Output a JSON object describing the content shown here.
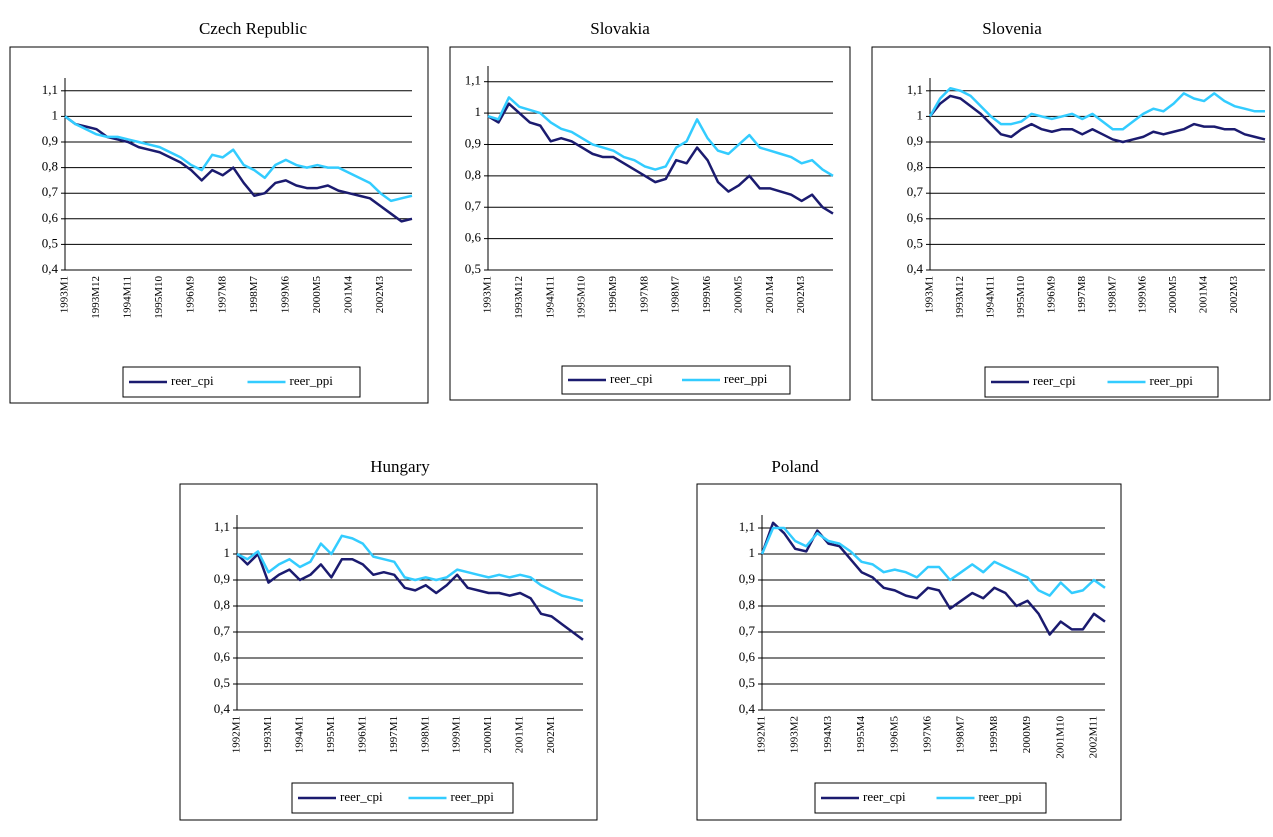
{
  "chart_data": [
    {
      "type": "line",
      "title": "Czech Republic",
      "categories": [
        "1993M1",
        null,
        null,
        "1993M12",
        null,
        null,
        "1994M11",
        null,
        null,
        "1995M10",
        null,
        null,
        "1996M9",
        null,
        null,
        "1997M8",
        null,
        null,
        "1998M7",
        null,
        null,
        "1999M6",
        null,
        null,
        "2000M5",
        null,
        null,
        "2001M4",
        null,
        null,
        "2002M3",
        null,
        null,
        null
      ],
      "series": [
        {
          "name": "reer_cpi",
          "color": "#1b1b6f",
          "values": [
            1.0,
            0.97,
            0.96,
            0.95,
            0.92,
            0.91,
            0.9,
            0.88,
            0.87,
            0.86,
            0.84,
            0.82,
            0.79,
            0.75,
            0.79,
            0.77,
            0.8,
            0.74,
            0.69,
            0.7,
            0.74,
            0.75,
            0.73,
            0.72,
            0.72,
            0.73,
            0.71,
            0.7,
            0.69,
            0.68,
            0.65,
            0.62,
            0.59,
            0.6
          ]
        },
        {
          "name": "reer_ppi",
          "color": "#33ccff",
          "values": [
            1.0,
            0.97,
            0.95,
            0.93,
            0.92,
            0.92,
            0.91,
            0.9,
            0.89,
            0.88,
            0.86,
            0.84,
            0.81,
            0.79,
            0.85,
            0.84,
            0.87,
            0.81,
            0.79,
            0.76,
            0.81,
            0.83,
            0.81,
            0.8,
            0.81,
            0.8,
            0.8,
            0.78,
            0.76,
            0.74,
            0.7,
            0.67,
            0.68,
            0.69
          ]
        }
      ],
      "ylim": [
        0.4,
        1.15
      ],
      "yticks": [
        {
          "value": 0.4,
          "label": "0,4"
        },
        {
          "value": 0.5,
          "label": "0,5"
        },
        {
          "value": 0.6,
          "label": "0,6"
        },
        {
          "value": 0.7,
          "label": "0,7"
        },
        {
          "value": 0.8,
          "label": "0,8"
        },
        {
          "value": 0.9,
          "label": "0,9"
        },
        1,
        {
          "value": 1.1,
          "label": "1,1"
        }
      ],
      "grid": true,
      "legend": "bottom"
    },
    {
      "type": "line",
      "title": "Slovakia",
      "categories": [
        "1993M1",
        null,
        null,
        "1993M12",
        null,
        null,
        "1994M11",
        null,
        null,
        "1995M10",
        null,
        null,
        "1996M9",
        null,
        null,
        "1997M8",
        null,
        null,
        "1998M7",
        null,
        null,
        "1999M6",
        null,
        null,
        "2000M5",
        null,
        null,
        "2001M4",
        null,
        null,
        "2002M3",
        null,
        null,
        null
      ],
      "series": [
        {
          "name": "reer_cpi",
          "color": "#1b1b6f",
          "values": [
            0.99,
            0.97,
            1.03,
            1.0,
            0.97,
            0.96,
            0.91,
            0.92,
            0.91,
            0.89,
            0.87,
            0.86,
            0.86,
            0.84,
            0.82,
            0.8,
            0.78,
            0.79,
            0.85,
            0.84,
            0.89,
            0.85,
            0.78,
            0.75,
            0.77,
            0.8,
            0.76,
            0.76,
            0.75,
            0.74,
            0.72,
            0.74,
            0.7,
            0.68
          ]
        },
        {
          "name": "reer_ppi",
          "color": "#33ccff",
          "values": [
            0.99,
            0.98,
            1.05,
            1.02,
            1.01,
            1.0,
            0.97,
            0.95,
            0.94,
            0.92,
            0.9,
            0.89,
            0.88,
            0.86,
            0.85,
            0.83,
            0.82,
            0.83,
            0.89,
            0.91,
            0.98,
            0.92,
            0.88,
            0.87,
            0.9,
            0.93,
            0.89,
            0.88,
            0.87,
            0.86,
            0.84,
            0.85,
            0.82,
            0.8
          ]
        }
      ],
      "ylim": [
        0.5,
        1.15
      ],
      "yticks": [
        {
          "value": 0.5,
          "label": "0,5"
        },
        {
          "value": 0.6,
          "label": "0,6"
        },
        {
          "value": 0.7,
          "label": "0,7"
        },
        {
          "value": 0.8,
          "label": "0,8"
        },
        {
          "value": 0.9,
          "label": "0,9"
        },
        1,
        {
          "value": 1.1,
          "label": "1,1"
        }
      ],
      "grid": true,
      "legend": "bottom"
    },
    {
      "type": "line",
      "title": "Slovenia",
      "categories": [
        "1993M1",
        null,
        null,
        "1993M12",
        null,
        null,
        "1994M11",
        null,
        null,
        "1995M10",
        null,
        null,
        "1996M9",
        null,
        null,
        "1997M8",
        null,
        null,
        "1998M7",
        null,
        null,
        "1999M6",
        null,
        null,
        "2000M5",
        null,
        null,
        "2001M4",
        null,
        null,
        "2002M3",
        null,
        null,
        null
      ],
      "series": [
        {
          "name": "reer_cpi",
          "color": "#1b1b6f",
          "values": [
            1.0,
            1.05,
            1.08,
            1.07,
            1.04,
            1.01,
            0.97,
            0.93,
            0.92,
            0.95,
            0.97,
            0.95,
            0.94,
            0.95,
            0.95,
            0.93,
            0.95,
            0.93,
            0.91,
            0.9,
            0.91,
            0.92,
            0.94,
            0.93,
            0.94,
            0.95,
            0.97,
            0.96,
            0.96,
            0.95,
            0.95,
            0.93,
            0.92,
            0.91
          ]
        },
        {
          "name": "reer_ppi",
          "color": "#33ccff",
          "values": [
            1.0,
            1.07,
            1.11,
            1.1,
            1.08,
            1.04,
            1.0,
            0.97,
            0.97,
            0.98,
            1.01,
            1.0,
            0.99,
            1.0,
            1.01,
            0.99,
            1.01,
            0.98,
            0.95,
            0.95,
            0.98,
            1.01,
            1.03,
            1.02,
            1.05,
            1.09,
            1.07,
            1.06,
            1.09,
            1.06,
            1.04,
            1.03,
            1.02,
            1.02
          ]
        }
      ],
      "ylim": [
        0.4,
        1.15
      ],
      "yticks": [
        {
          "value": 0.4,
          "label": "0,4"
        },
        {
          "value": 0.5,
          "label": "0,5"
        },
        {
          "value": 0.6,
          "label": "0,6"
        },
        {
          "value": 0.7,
          "label": "0,7"
        },
        {
          "value": 0.8,
          "label": "0,8"
        },
        {
          "value": 0.9,
          "label": "0,9"
        },
        1,
        {
          "value": 1.1,
          "label": "1,1"
        }
      ],
      "grid": true,
      "legend": "bottom"
    },
    {
      "type": "line",
      "title": "Hungary",
      "categories": [
        "1992M1",
        null,
        null,
        "1993M1",
        null,
        null,
        "1994M1",
        null,
        null,
        "1995M1",
        null,
        null,
        "1996M1",
        null,
        null,
        "1997M1",
        null,
        null,
        "1998M1",
        null,
        null,
        "1999M1",
        null,
        null,
        "2000M1",
        null,
        null,
        "2001M1",
        null,
        null,
        "2002M1",
        null,
        null,
        null
      ],
      "series": [
        {
          "name": "reer_cpi",
          "color": "#1b1b6f",
          "values": [
            1.0,
            0.96,
            1.0,
            0.89,
            0.92,
            0.94,
            0.9,
            0.92,
            0.96,
            0.91,
            0.98,
            0.98,
            0.96,
            0.92,
            0.93,
            0.92,
            0.87,
            0.86,
            0.88,
            0.85,
            0.88,
            0.92,
            0.87,
            0.86,
            0.85,
            0.85,
            0.84,
            0.85,
            0.83,
            0.77,
            0.76,
            0.73,
            0.7,
            0.67
          ]
        },
        {
          "name": "reer_ppi",
          "color": "#33ccff",
          "values": [
            1.0,
            0.98,
            1.01,
            0.93,
            0.96,
            0.98,
            0.95,
            0.97,
            1.04,
            1.0,
            1.07,
            1.06,
            1.04,
            0.99,
            0.98,
            0.97,
            0.91,
            0.9,
            0.91,
            0.9,
            0.91,
            0.94,
            0.93,
            0.92,
            0.91,
            0.92,
            0.91,
            0.92,
            0.91,
            0.88,
            0.86,
            0.84,
            0.83,
            0.82
          ]
        }
      ],
      "ylim": [
        0.4,
        1.15
      ],
      "yticks": [
        {
          "value": 0.4,
          "label": "0,4"
        },
        {
          "value": 0.5,
          "label": "0,5"
        },
        {
          "value": 0.6,
          "label": "0,6"
        },
        {
          "value": 0.7,
          "label": "0,7"
        },
        {
          "value": 0.8,
          "label": "0,8"
        },
        {
          "value": 0.9,
          "label": "0,9"
        },
        1,
        {
          "value": 1.1,
          "label": "1,1"
        }
      ],
      "grid": true,
      "legend": "bottom"
    },
    {
      "type": "line",
      "title": "Poland",
      "categories": [
        "1992M1",
        null,
        null,
        "1993M2",
        null,
        null,
        "1994M3",
        null,
        null,
        "1995M4",
        null,
        null,
        "1996M5",
        null,
        null,
        "1997M6",
        null,
        null,
        "1998M7",
        null,
        null,
        "1999M8",
        null,
        null,
        "2000M9",
        null,
        null,
        "2001M10",
        null,
        null,
        "2002M11",
        null
      ],
      "series": [
        {
          "name": "reer_cpi",
          "color": "#1b1b6f",
          "values": [
            1.0,
            1.12,
            1.08,
            1.02,
            1.01,
            1.09,
            1.04,
            1.03,
            0.98,
            0.93,
            0.91,
            0.87,
            0.86,
            0.84,
            0.83,
            0.87,
            0.86,
            0.79,
            0.82,
            0.85,
            0.83,
            0.87,
            0.85,
            0.8,
            0.82,
            0.77,
            0.69,
            0.74,
            0.71,
            0.71,
            0.77,
            0.74
          ]
        },
        {
          "name": "reer_ppi",
          "color": "#33ccff",
          "values": [
            1.0,
            1.1,
            1.1,
            1.05,
            1.03,
            1.08,
            1.05,
            1.04,
            1.01,
            0.97,
            0.96,
            0.93,
            0.94,
            0.93,
            0.91,
            0.95,
            0.95,
            0.9,
            0.93,
            0.96,
            0.93,
            0.97,
            0.95,
            0.93,
            0.91,
            0.86,
            0.84,
            0.89,
            0.85,
            0.86,
            0.9,
            0.87
          ]
        }
      ],
      "ylim": [
        0.4,
        1.15
      ],
      "yticks": [
        {
          "value": 0.4,
          "label": "0,4"
        },
        {
          "value": 0.5,
          "label": "0,5"
        },
        {
          "value": 0.6,
          "label": "0,6"
        },
        {
          "value": 0.7,
          "label": "0,7"
        },
        {
          "value": 0.8,
          "label": "0,8"
        },
        {
          "value": 0.9,
          "label": "0,9"
        },
        1,
        {
          "value": 1.1,
          "label": "1,1"
        }
      ],
      "grid": true,
      "legend": "bottom"
    }
  ]
}
